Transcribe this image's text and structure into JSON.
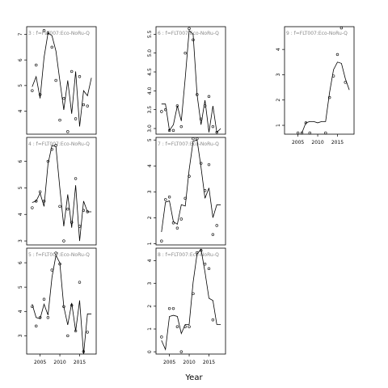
{
  "chart_data": {
    "type": "line",
    "xlabel": "Year",
    "panels": [
      {
        "title": "3 : f=FLT007:Eco-NoRu-Q",
        "ylim": [
          3.1,
          7.3
        ],
        "yticks": [
          "4",
          "5",
          "6",
          "7"
        ],
        "x_ticks_shown": false,
        "line": {
          "x": [
            2003,
            2004,
            2005,
            2006,
            2007,
            2008,
            2009,
            2010,
            2011,
            2012,
            2013,
            2014,
            2015,
            2016,
            2017,
            2018
          ],
          "y": [
            4.95,
            5.35,
            4.5,
            6.1,
            7.05,
            6.95,
            6.35,
            5.2,
            4.05,
            5.2,
            3.9,
            5.55,
            3.4,
            4.8,
            4.6,
            5.3
          ]
        },
        "points": {
          "x": [
            2003,
            2004,
            2005,
            2006,
            2007,
            2008,
            2009,
            2010,
            2011,
            2012,
            2013,
            2014,
            2015,
            2016,
            2017
          ],
          "y": [
            4.8,
            5.8,
            4.65,
            7.15,
            7.05,
            6.5,
            5.2,
            3.65,
            4.5,
            3.2,
            5.55,
            3.7,
            5.35,
            4.25,
            4.2
          ]
        }
      },
      {
        "title": "6 : f=FLT007:Eco-NoRu-Q",
        "ylim": [
          2.85,
          5.7
        ],
        "yticks": [
          "3.0",
          "3.5",
          "4.0",
          "4.5",
          "5.0",
          "5.5"
        ],
        "x_ticks_shown": false,
        "line": {
          "x": [
            2003,
            2004,
            2005,
            2006,
            2007,
            2008,
            2009,
            2010,
            2011,
            2012,
            2013,
            2014,
            2015,
            2016,
            2017,
            2018
          ],
          "y": [
            3.65,
            3.65,
            2.95,
            3.1,
            3.6,
            3.2,
            4.35,
            5.6,
            5.5,
            3.9,
            3.1,
            3.75,
            2.9,
            3.6,
            2.9,
            3.0
          ]
        },
        "points": {
          "x": [
            2003,
            2004,
            2005,
            2006,
            2007,
            2008,
            2009,
            2010,
            2011,
            2012,
            2013,
            2014,
            2015,
            2016,
            2017
          ],
          "y": [
            3.45,
            3.5,
            2.95,
            2.95,
            3.6,
            3.05,
            5.0,
            5.65,
            5.35,
            3.9,
            3.25,
            3.6,
            3.85,
            3.05,
            2.9
          ]
        }
      },
      {
        "title": "9 : f=FLT007:Eco-NoRu-Q",
        "ylim": [
          0.65,
          4.9
        ],
        "yticks": [
          "1",
          "2",
          "3",
          "4"
        ],
        "x_ticks": [
          2005,
          2010,
          2015
        ],
        "x_ticks_shown": true,
        "line": {
          "x": [
            2006,
            2007,
            2008,
            2009,
            2010,
            2011,
            2012,
            2013,
            2014,
            2015,
            2016,
            2017,
            2018
          ],
          "y": [
            0.7,
            1.1,
            1.15,
            1.15,
            1.1,
            1.15,
            1.15,
            2.3,
            3.2,
            3.5,
            3.45,
            2.85,
            2.4
          ]
        },
        "points": {
          "x": [
            2005,
            2006,
            2007,
            2008,
            2012,
            2013,
            2014,
            2015,
            2016,
            2017
          ],
          "y": [
            0.7,
            0.7,
            1.1,
            0.7,
            0.7,
            2.1,
            2.95,
            3.8,
            4.85,
            2.7
          ]
        }
      },
      {
        "title": "4 : f=FLT007:Eco-NoRu-Q",
        "ylim": [
          2.85,
          6.9
        ],
        "yticks": [
          "3",
          "4",
          "5",
          "6"
        ],
        "x_ticks_shown": false,
        "line": {
          "x": [
            2003,
            2004,
            2005,
            2006,
            2007,
            2008,
            2009,
            2010,
            2011,
            2012,
            2013,
            2014,
            2015,
            2016,
            2017,
            2018
          ],
          "y": [
            4.45,
            4.5,
            4.8,
            4.3,
            5.9,
            6.6,
            6.55,
            5.0,
            3.55,
            4.75,
            3.5,
            5.1,
            3.0,
            4.5,
            4.1,
            4.1
          ]
        },
        "points": {
          "x": [
            2003,
            2004,
            2005,
            2006,
            2007,
            2008,
            2009,
            2010,
            2011,
            2012,
            2013,
            2014,
            2015,
            2016,
            2017
          ],
          "y": [
            4.25,
            4.5,
            4.85,
            4.5,
            6.0,
            6.45,
            6.6,
            4.3,
            3.0,
            4.2,
            3.7,
            5.35,
            3.55,
            4.15,
            4.1
          ]
        }
      },
      {
        "title": "7 : f=FLT007:Eco-NoRu-Q",
        "ylim": [
          0.95,
          5.1
        ],
        "yticks": [
          "1",
          "2",
          "3",
          "4",
          "5"
        ],
        "x_ticks_shown": false,
        "line": {
          "x": [
            2003,
            2004,
            2005,
            2006,
            2007,
            2008,
            2009,
            2010,
            2011,
            2012,
            2013,
            2014,
            2015,
            2016,
            2017,
            2018
          ],
          "y": [
            1.45,
            2.6,
            2.65,
            1.85,
            1.75,
            2.5,
            2.45,
            3.85,
            4.95,
            5.0,
            3.95,
            2.75,
            3.15,
            2.0,
            2.5,
            2.5
          ]
        },
        "points": {
          "x": [
            2003,
            2004,
            2005,
            2006,
            2007,
            2008,
            2009,
            2010,
            2011,
            2012,
            2013,
            2014,
            2015,
            2016,
            2017
          ],
          "y": [
            1.1,
            2.7,
            2.8,
            1.8,
            1.6,
            1.95,
            2.75,
            3.6,
            5.05,
            5.05,
            4.1,
            3.05,
            4.05,
            1.35,
            1.7
          ]
        }
      },
      {
        "title": "5 : f=FLT007:Eco-NoRu-Q",
        "ylim": [
          2.25,
          6.6
        ],
        "yticks": [
          "3",
          "4",
          "5",
          "6"
        ],
        "x_ticks": [
          2005,
          2010,
          2015
        ],
        "x_ticks_shown": true,
        "line": {
          "x": [
            2003,
            2004,
            2005,
            2006,
            2007,
            2008,
            2009,
            2010,
            2011,
            2012,
            2013,
            2014,
            2015,
            2016,
            2017,
            2018
          ],
          "y": [
            4.3,
            3.75,
            3.7,
            4.3,
            3.85,
            5.4,
            6.3,
            6.0,
            4.2,
            3.45,
            4.35,
            3.2,
            4.45,
            2.25,
            3.9,
            3.9
          ]
        },
        "points": {
          "x": [
            2003,
            2004,
            2005,
            2006,
            2007,
            2008,
            2009,
            2010,
            2011,
            2012,
            2013,
            2014,
            2015,
            2016,
            2017
          ],
          "y": [
            4.2,
            3.4,
            3.75,
            4.5,
            3.75,
            5.7,
            6.4,
            5.95,
            4.2,
            3.0,
            4.25,
            3.2,
            5.2,
            2.35,
            3.15
          ]
        }
      },
      {
        "title": "8 : f=FLT007:Eco-NoRu-Q",
        "ylim": [
          -0.1,
          4.55
        ],
        "yticks": [
          "0",
          "1",
          "2",
          "3",
          "4"
        ],
        "x_ticks": [
          2005,
          2010,
          2015
        ],
        "x_ticks_shown": true,
        "line": {
          "x": [
            2003,
            2004,
            2005,
            2006,
            2007,
            2008,
            2009,
            2010,
            2011,
            2012,
            2013,
            2014,
            2015,
            2016,
            2017,
            2018
          ],
          "y": [
            0.5,
            0.1,
            1.55,
            1.6,
            1.55,
            0.8,
            1.2,
            1.2,
            3.05,
            4.3,
            4.5,
            3.5,
            2.35,
            2.25,
            1.2,
            1.2
          ]
        },
        "points": {
          "x": [
            2003,
            2005,
            2006,
            2007,
            2008,
            2009,
            2010,
            2011,
            2012,
            2013,
            2014,
            2015,
            2016
          ],
          "y": [
            0.65,
            1.9,
            1.9,
            1.1,
            0.0,
            1.1,
            1.1,
            2.55,
            4.35,
            4.45,
            3.85,
            3.65,
            1.4
          ]
        }
      }
    ]
  }
}
